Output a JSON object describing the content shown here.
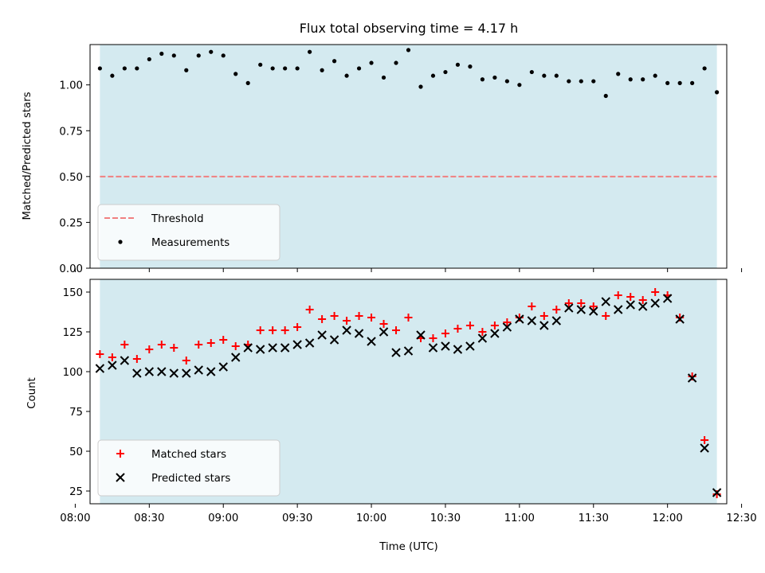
{
  "chart_data": [
    {
      "type": "scatter",
      "title": "Flux total observing time = 4.17 h",
      "xlabel": "",
      "ylabel": "Matched/Predicted stars",
      "xlim": [
        "08:06",
        "12:24"
      ],
      "ylim": [
        0,
        1.22
      ],
      "yticks": [
        0.0,
        0.25,
        0.5,
        0.75,
        1.0,
        1.25
      ],
      "ytick_labels": [
        "0.00",
        "0.25",
        "0.50",
        "0.75",
        "1.00"
      ],
      "observing_window": [
        "08:10",
        "12:20"
      ],
      "shade_color": "#d4eaf0",
      "legend_position": "lower-left",
      "series": [
        {
          "name": "Threshold",
          "kind": "dashed-line",
          "color": "#f08080",
          "x": [
            "08:10",
            "12:20"
          ],
          "y": [
            0.5,
            0.5
          ]
        },
        {
          "name": "Measurements",
          "kind": "dot",
          "color": "#000000",
          "x": [
            "08:10",
            "08:15",
            "08:20",
            "08:25",
            "08:30",
            "08:35",
            "08:40",
            "08:45",
            "08:50",
            "08:55",
            "09:00",
            "09:05",
            "09:10",
            "09:15",
            "09:20",
            "09:25",
            "09:30",
            "09:35",
            "09:40",
            "09:45",
            "09:50",
            "09:55",
            "10:00",
            "10:05",
            "10:10",
            "10:15",
            "10:20",
            "10:25",
            "10:30",
            "10:35",
            "10:40",
            "10:45",
            "10:50",
            "10:55",
            "11:00",
            "11:05",
            "11:10",
            "11:15",
            "11:20",
            "11:25",
            "11:30",
            "11:35",
            "11:40",
            "11:45",
            "11:50",
            "11:55",
            "12:00",
            "12:05",
            "12:10",
            "12:15",
            "12:20"
          ],
          "y": [
            1.09,
            1.05,
            1.09,
            1.09,
            1.14,
            1.17,
            1.16,
            1.08,
            1.16,
            1.18,
            1.16,
            1.06,
            1.01,
            1.11,
            1.09,
            1.09,
            1.09,
            1.18,
            1.08,
            1.13,
            1.05,
            1.09,
            1.12,
            1.04,
            1.12,
            1.19,
            0.99,
            1.05,
            1.07,
            1.11,
            1.1,
            1.03,
            1.04,
            1.02,
            1.0,
            1.07,
            1.05,
            1.05,
            1.02,
            1.02,
            1.02,
            0.94,
            1.06,
            1.03,
            1.03,
            1.05,
            1.01,
            1.01,
            1.01,
            1.09,
            0.96
          ]
        }
      ]
    },
    {
      "type": "scatter",
      "title": "",
      "xlabel": "Time (UTC)",
      "ylabel": "Count",
      "xlim": [
        "08:06",
        "12:24"
      ],
      "ylim": [
        17,
        158
      ],
      "yticks": [
        25,
        50,
        75,
        100,
        125,
        150
      ],
      "ytick_labels": [
        "25",
        "50",
        "75",
        "100",
        "125",
        "150"
      ],
      "xticks": [
        "08:00",
        "08:30",
        "09:00",
        "09:30",
        "10:00",
        "10:30",
        "11:00",
        "11:30",
        "12:00",
        "12:30"
      ],
      "observing_window": [
        "08:10",
        "12:20"
      ],
      "shade_color": "#d4eaf0",
      "legend_position": "lower-left",
      "series": [
        {
          "name": "Matched stars",
          "kind": "plus",
          "color": "#ff0000",
          "x": [
            "08:10",
            "08:15",
            "08:20",
            "08:25",
            "08:30",
            "08:35",
            "08:40",
            "08:45",
            "08:50",
            "08:55",
            "09:00",
            "09:05",
            "09:10",
            "09:15",
            "09:20",
            "09:25",
            "09:30",
            "09:35",
            "09:40",
            "09:45",
            "09:50",
            "09:55",
            "10:00",
            "10:05",
            "10:10",
            "10:15",
            "10:20",
            "10:25",
            "10:30",
            "10:35",
            "10:40",
            "10:45",
            "10:50",
            "10:55",
            "11:00",
            "11:05",
            "11:10",
            "11:15",
            "11:20",
            "11:25",
            "11:30",
            "11:35",
            "11:40",
            "11:45",
            "11:50",
            "11:55",
            "12:00",
            "12:05",
            "12:10",
            "12:15",
            "12:20"
          ],
          "y": [
            111,
            109,
            117,
            108,
            114,
            117,
            115,
            107,
            117,
            118,
            120,
            116,
            117,
            126,
            126,
            126,
            128,
            139,
            133,
            135,
            132,
            135,
            134,
            130,
            126,
            134,
            121,
            121,
            124,
            127,
            129,
            125,
            129,
            131,
            134,
            141,
            135,
            139,
            143,
            143,
            141,
            135,
            148,
            147,
            145,
            150,
            148,
            134,
            97,
            57,
            23
          ]
        },
        {
          "name": "Predicted stars",
          "kind": "x",
          "color": "#000000",
          "x": [
            "08:10",
            "08:15",
            "08:20",
            "08:25",
            "08:30",
            "08:35",
            "08:40",
            "08:45",
            "08:50",
            "08:55",
            "09:00",
            "09:05",
            "09:10",
            "09:15",
            "09:20",
            "09:25",
            "09:30",
            "09:35",
            "09:40",
            "09:45",
            "09:50",
            "09:55",
            "10:00",
            "10:05",
            "10:10",
            "10:15",
            "10:20",
            "10:25",
            "10:30",
            "10:35",
            "10:40",
            "10:45",
            "10:50",
            "10:55",
            "11:00",
            "11:05",
            "11:10",
            "11:15",
            "11:20",
            "11:25",
            "11:30",
            "11:35",
            "11:40",
            "11:45",
            "11:50",
            "11:55",
            "12:00",
            "12:05",
            "12:10",
            "12:15",
            "12:20"
          ],
          "y": [
            102,
            104,
            107,
            99,
            100,
            100,
            99,
            99,
            101,
            100,
            103,
            109,
            115,
            114,
            115,
            115,
            117,
            118,
            123,
            120,
            126,
            124,
            119,
            125,
            112,
            113,
            123,
            115,
            116,
            114,
            116,
            121,
            124,
            128,
            133,
            132,
            129,
            132,
            140,
            139,
            138,
            144,
            139,
            142,
            141,
            143,
            146,
            133,
            96,
            52,
            24
          ]
        }
      ]
    }
  ]
}
